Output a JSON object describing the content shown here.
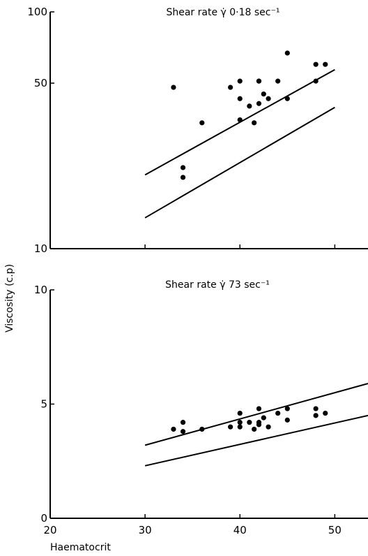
{
  "ylabel": "Viscosity (c.p)",
  "xlabel": "Haematocrit",
  "x_ticks": [
    "20",
    "30",
    "40",
    "50"
  ],
  "chart_data": [
    {
      "type": "scatter",
      "title": "Shear rate γ̇ 0·18 sec⁻¹",
      "xlabel": "Haematocrit",
      "ylabel": "Viscosity (c.p)",
      "xlim": [
        20,
        53.5
      ],
      "ylim": [
        10,
        100
      ],
      "y_scale": "log",
      "y_ticks": [
        "10",
        "50",
        "100"
      ],
      "points": {
        "x": [
          33,
          34,
          34,
          36,
          39,
          40,
          40,
          40,
          41,
          41.5,
          42,
          42,
          42,
          42.5,
          43,
          44,
          45,
          45,
          48,
          48,
          49
        ],
        "y": [
          48,
          22,
          20,
          34,
          48,
          51,
          43,
          35,
          40,
          34,
          51,
          51,
          41,
          45,
          43,
          51,
          67,
          43,
          60,
          51,
          60
        ]
      },
      "lines": [
        {
          "x": [
            30,
            50
          ],
          "y": [
            20.5,
            57
          ]
        },
        {
          "x": [
            30,
            50
          ],
          "y": [
            13.5,
            39.5
          ]
        }
      ],
      "grid": false
    },
    {
      "type": "scatter",
      "title": "Shear rate γ̇ 73 sec⁻¹",
      "xlabel": "Haematocrit",
      "ylabel": "Viscosity (c.p)",
      "xlim": [
        20,
        53.5
      ],
      "ylim": [
        0,
        10
      ],
      "y_ticks": [
        "0",
        "5",
        "10"
      ],
      "points": {
        "x": [
          33,
          34,
          34,
          36,
          39,
          40,
          40,
          40,
          41,
          41.5,
          42,
          42,
          42,
          42.5,
          43,
          44,
          45,
          45,
          48,
          48,
          49
        ],
        "y": [
          3.9,
          4.2,
          3.8,
          3.9,
          4.0,
          4.6,
          4.0,
          4.2,
          4.2,
          3.9,
          4.8,
          4.1,
          4.2,
          4.4,
          4.0,
          4.6,
          4.8,
          4.3,
          4.8,
          4.5,
          4.6
        ]
      },
      "lines": [
        {
          "x": [
            30,
            53.5
          ],
          "y": [
            3.2,
            5.9
          ]
        },
        {
          "x": [
            30,
            53.5
          ],
          "y": [
            2.3,
            4.5
          ]
        }
      ],
      "grid": false
    }
  ]
}
